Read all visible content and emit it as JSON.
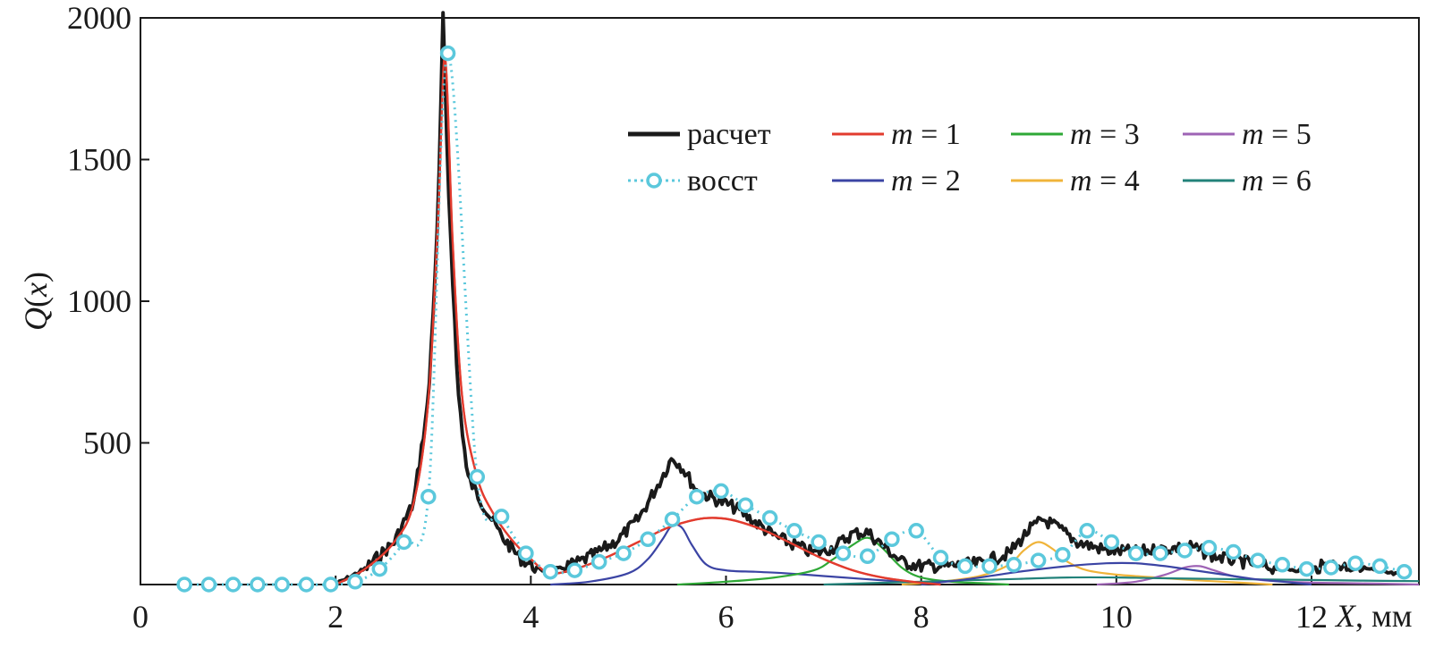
{
  "chart_data": {
    "type": "line",
    "xlabel": "X, мм",
    "ylabel": "Q(x)",
    "xlim": [
      0,
      13.1
    ],
    "ylim": [
      0,
      2000
    ],
    "xticks": [
      0,
      2,
      4,
      6,
      8,
      10,
      12
    ],
    "yticks": [
      500,
      1000,
      1500,
      2000
    ],
    "grid": false,
    "legend_position": "top-right",
    "series": [
      {
        "name": "расчет",
        "color": "#1a1a1a",
        "style": "noisy-line",
        "x": [
          2.0,
          2.3,
          2.6,
          2.8,
          2.95,
          3.05,
          3.1,
          3.15,
          3.25,
          3.35,
          3.5,
          3.7,
          3.9,
          4.1,
          4.3,
          4.5,
          4.7,
          4.9,
          5.1,
          5.3,
          5.45,
          5.55,
          5.7,
          5.9,
          6.1,
          6.3,
          6.5,
          6.7,
          6.9,
          7.1,
          7.3,
          7.45,
          7.6,
          7.8,
          8.0,
          8.3,
          8.6,
          8.9,
          9.1,
          9.25,
          9.4,
          9.6,
          9.9,
          10.2,
          10.5,
          10.75,
          11.0,
          11.3,
          11.6,
          11.9,
          12.2,
          12.5,
          12.8,
          13.0
        ],
        "y": [
          0,
          55,
          150,
          290,
          650,
          1300,
          2000,
          1450,
          700,
          380,
          290,
          170,
          90,
          50,
          55,
          80,
          115,
          160,
          230,
          350,
          450,
          415,
          330,
          300,
          270,
          220,
          170,
          140,
          110,
          130,
          180,
          185,
          140,
          80,
          65,
          65,
          75,
          110,
          190,
          230,
          200,
          150,
          120,
          115,
          125,
          135,
          100,
          80,
          60,
          50,
          70,
          60,
          40,
          30
        ]
      },
      {
        "name": "восст",
        "color": "#5bc8dc",
        "style": "dotted-circles",
        "x": [
          0.45,
          0.7,
          0.95,
          1.2,
          1.45,
          1.7,
          1.95,
          2.2,
          2.45,
          2.7,
          2.95,
          3.15,
          3.45,
          3.7,
          3.95,
          4.2,
          4.45,
          4.7,
          4.95,
          5.2,
          5.45,
          5.7,
          5.95,
          6.2,
          6.45,
          6.7,
          6.95,
          7.2,
          7.45,
          7.7,
          7.95,
          8.2,
          8.45,
          8.7,
          8.95,
          9.2,
          9.45,
          9.7,
          9.95,
          10.2,
          10.45,
          10.7,
          10.95,
          11.2,
          11.45,
          11.7,
          11.95,
          12.2,
          12.45,
          12.7,
          12.95
        ],
        "y": [
          0,
          0,
          0,
          0,
          0,
          0,
          0,
          10,
          55,
          150,
          310,
          1875,
          380,
          240,
          110,
          45,
          50,
          80,
          110,
          160,
          230,
          310,
          330,
          280,
          235,
          190,
          150,
          110,
          100,
          160,
          190,
          95,
          65,
          65,
          70,
          85,
          105,
          190,
          150,
          110,
          110,
          120,
          130,
          115,
          85,
          70,
          55,
          60,
          75,
          65,
          45
        ]
      },
      {
        "name": "m = 1",
        "color": "#e23b2e",
        "x": [
          2.0,
          2.3,
          2.6,
          2.8,
          2.95,
          3.05,
          3.12,
          3.2,
          3.3,
          3.45,
          3.6,
          3.8,
          4.0,
          4.2,
          4.5,
          4.8,
          5.1,
          5.4,
          5.7,
          5.9,
          6.1,
          6.4,
          6.7,
          7.0,
          7.3,
          7.6,
          7.9,
          8.2
        ],
        "y": [
          0,
          55,
          150,
          290,
          650,
          1300,
          1860,
          1200,
          650,
          380,
          260,
          160,
          90,
          40,
          60,
          100,
          150,
          200,
          230,
          235,
          225,
          190,
          140,
          90,
          50,
          25,
          10,
          0
        ]
      },
      {
        "name": "m = 2",
        "color": "#3b44a4",
        "x": [
          4.2,
          4.6,
          5.0,
          5.2,
          5.35,
          5.45,
          5.55,
          5.65,
          5.8,
          6.0,
          6.3,
          6.6,
          7.0,
          7.4,
          7.8,
          8.2
        ],
        "y": [
          0,
          10,
          40,
          90,
          160,
          210,
          200,
          140,
          70,
          50,
          45,
          40,
          30,
          20,
          10,
          0
        ]
      },
      {
        "name": "m = 3",
        "color": "#2ea836",
        "x": [
          5.5,
          6.0,
          6.5,
          6.9,
          7.1,
          7.3,
          7.45,
          7.6,
          7.8,
          8.0,
          8.3,
          8.6,
          8.9
        ],
        "y": [
          0,
          10,
          25,
          50,
          90,
          140,
          165,
          130,
          60,
          25,
          10,
          5,
          0
        ]
      },
      {
        "name": "m = 4",
        "color": "#f0b43a",
        "x": [
          7.8,
          8.2,
          8.6,
          8.9,
          9.05,
          9.2,
          9.35,
          9.5,
          9.7,
          10.0,
          10.4,
          10.8,
          11.2,
          11.6
        ],
        "y": [
          0,
          10,
          30,
          70,
          120,
          150,
          125,
          80,
          50,
          35,
          25,
          15,
          8,
          0
        ]
      },
      {
        "name": "m = 5",
        "color": "#9e63b5",
        "x": [
          9.8,
          10.2,
          10.5,
          10.7,
          10.85,
          11.0,
          11.2,
          11.5,
          11.9,
          12.3,
          12.7,
          13.1
        ],
        "y": [
          0,
          10,
          35,
          60,
          65,
          50,
          30,
          15,
          8,
          5,
          3,
          0
        ]
      },
      {
        "name": "m = 6",
        "color": "#22827a",
        "x": [
          7.0,
          7.5,
          8.0,
          8.5,
          9.0,
          9.5,
          10.0,
          10.5,
          11.0,
          11.5,
          12.0,
          12.5,
          13.1
        ],
        "y": [
          0,
          5,
          10,
          15,
          20,
          25,
          25,
          22,
          20,
          18,
          16,
          14,
          12
        ]
      }
    ],
    "extra_series": [
      {
        "color": "#3b44a4",
        "x": [
          8.0,
          8.5,
          9.0,
          9.5,
          9.9,
          10.2,
          10.5,
          10.8,
          11.1,
          11.4,
          11.7,
          12.0
        ],
        "y": [
          0,
          20,
          45,
          65,
          75,
          75,
          65,
          50,
          35,
          20,
          10,
          0
        ]
      }
    ]
  }
}
